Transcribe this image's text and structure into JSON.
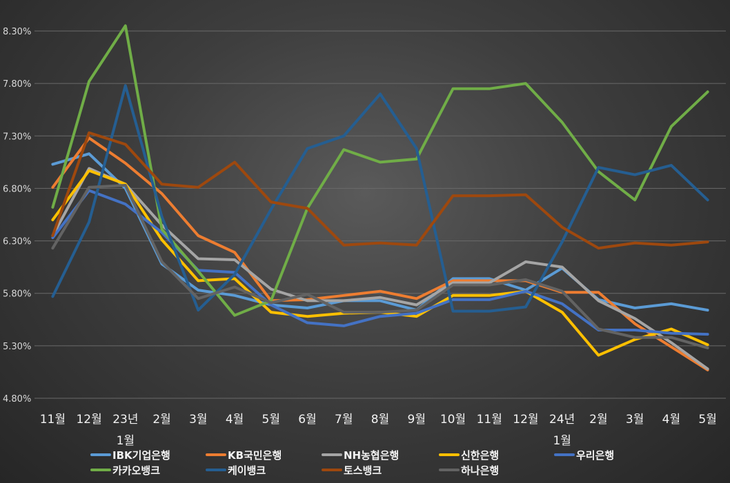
{
  "chart_data": {
    "type": "line",
    "categories": [
      "11월",
      "12월",
      "23년",
      "2월",
      "3월",
      "4월",
      "5월",
      "6월",
      "7월",
      "8월",
      "9월",
      "10월",
      "11월",
      "12월",
      "24년",
      "2월",
      "3월",
      "4월",
      "5월"
    ],
    "category_sublabels": [
      "",
      "",
      "1월",
      "",
      "",
      "",
      "",
      "",
      "",
      "",
      "",
      "",
      "",
      "",
      "1월",
      "",
      "",
      "",
      ""
    ],
    "ylim": [
      4.8,
      8.3
    ],
    "yticks": [
      "4.80%",
      "5.30%",
      "5.80%",
      "6.30%",
      "6.80%",
      "7.30%",
      "7.80%",
      "8.30%"
    ],
    "grid": true,
    "legend_position": "bottom",
    "series": [
      {
        "name": "IBK기업은행",
        "color": "#5b9bd5",
        "values": [
          7.03,
          7.13,
          6.8,
          6.08,
          5.83,
          5.78,
          5.69,
          5.66,
          5.73,
          5.73,
          5.64,
          5.94,
          5.94,
          5.83,
          6.04,
          5.74,
          5.66,
          5.7,
          5.64
        ]
      },
      {
        "name": "KB국민은행",
        "color": "#ed7d31",
        "values": [
          6.81,
          7.28,
          7.04,
          6.75,
          6.35,
          6.19,
          5.73,
          5.74,
          5.78,
          5.82,
          5.75,
          5.92,
          5.92,
          5.92,
          5.81,
          5.81,
          5.51,
          5.29,
          5.07
        ]
      },
      {
        "name": "NH농협은행",
        "color": "#a5a5a5",
        "values": [
          6.35,
          6.99,
          6.84,
          6.45,
          6.13,
          6.12,
          5.84,
          5.73,
          5.73,
          5.76,
          5.69,
          5.9,
          5.9,
          6.1,
          6.05,
          5.73,
          5.56,
          5.33,
          5.08
        ]
      },
      {
        "name": "신한은행",
        "color": "#ffc000",
        "values": [
          6.5,
          6.97,
          6.84,
          6.31,
          5.92,
          5.94,
          5.62,
          5.58,
          5.61,
          5.62,
          5.58,
          5.78,
          5.78,
          5.82,
          5.62,
          5.21,
          5.36,
          5.46,
          5.31
        ]
      },
      {
        "name": "우리은행",
        "color": "#4472c4",
        "values": [
          6.33,
          6.78,
          6.65,
          6.38,
          6.02,
          6.0,
          5.69,
          5.52,
          5.49,
          5.58,
          5.61,
          5.74,
          5.74,
          5.82,
          5.7,
          5.45,
          5.45,
          5.42,
          5.41
        ]
      },
      {
        "name": "카카오뱅크",
        "color": "#70ad47",
        "values": [
          6.62,
          7.82,
          8.35,
          6.41,
          6.01,
          5.59,
          5.73,
          6.61,
          7.17,
          7.05,
          7.08,
          7.75,
          7.75,
          7.8,
          7.43,
          6.96,
          6.69,
          7.39,
          7.72
        ]
      },
      {
        "name": "케이뱅크",
        "color": "#255e91",
        "values": [
          5.77,
          6.48,
          7.78,
          6.53,
          5.64,
          5.98,
          6.6,
          7.18,
          7.3,
          7.7,
          7.18,
          5.63,
          5.63,
          5.67,
          6.29,
          7.0,
          6.93,
          7.02,
          6.69
        ]
      },
      {
        "name": "토스뱅크",
        "color": "#9e480e",
        "values": [
          6.35,
          7.33,
          7.22,
          6.84,
          6.81,
          7.05,
          6.67,
          6.61,
          6.26,
          6.28,
          6.26,
          6.73,
          6.73,
          6.74,
          6.43,
          6.23,
          6.28,
          6.26,
          6.29
        ]
      },
      {
        "name": "하나은행",
        "color": "#636363",
        "values": [
          6.23,
          6.81,
          6.83,
          6.1,
          5.75,
          5.86,
          5.71,
          5.79,
          5.62,
          5.62,
          5.64,
          5.88,
          5.88,
          5.93,
          5.82,
          5.46,
          5.38,
          5.38,
          5.28
        ]
      }
    ]
  }
}
